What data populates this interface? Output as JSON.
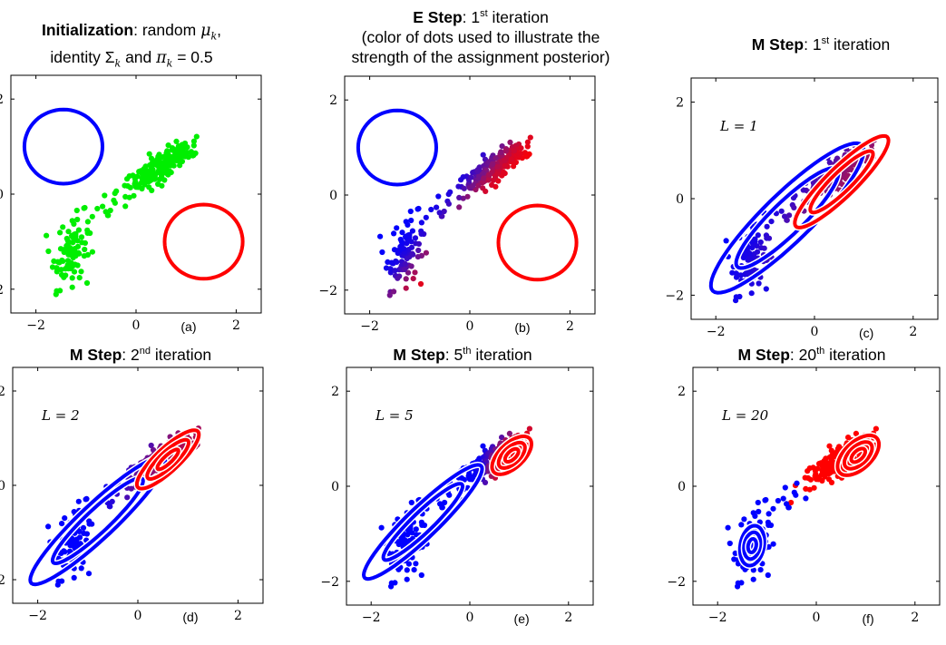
{
  "titles": {
    "a": {
      "bold": "Initialization",
      "rest": ": random ",
      "mu": "μ",
      "sub_k": "k",
      "comma": ",",
      "line2a": "identity ",
      "sigma": "Σ",
      "line2b": " and ",
      "pi": "π",
      "line2c": " = 0.5"
    },
    "b": {
      "bold": "E Step",
      "rest": ": 1",
      "sup": "st",
      "after": " iteration",
      "line2": "(color of dots used to illustrate the",
      "line3": "strength of the assignment posterior)"
    },
    "c": {
      "bold": "M Step",
      "rest": ": 1",
      "sup": "st",
      "after": " iteration"
    },
    "d": {
      "bold": "M Step",
      "rest": ": 2",
      "sup": "nd",
      "after": " iteration"
    },
    "e": {
      "bold": "M Step",
      "rest": ": 5",
      "sup": "th",
      "after": " iteration"
    },
    "f": {
      "bold": "M Step",
      "rest": ": 20",
      "sup": "th",
      "after": " iteration"
    }
  },
  "panels": [
    {
      "id": "a",
      "label": "(a)",
      "L": "",
      "mode": "init",
      "components": [
        {
          "color": "#0000ff",
          "mean": [
            -1.45,
            1.0
          ],
          "cov": [
            [
              1,
              0
            ],
            [
              0,
              1
            ]
          ],
          "scale": 0.78,
          "rings": 1
        },
        {
          "color": "#ff0000",
          "mean": [
            1.35,
            -1.0
          ],
          "cov": [
            [
              1,
              0
            ],
            [
              0,
              1
            ]
          ],
          "scale": 0.78,
          "rings": 1
        }
      ]
    },
    {
      "id": "b",
      "label": "(b)",
      "L": "",
      "mode": "estep",
      "components": [
        {
          "color": "#0000ff",
          "mean": [
            -1.45,
            1.0
          ],
          "cov": [
            [
              1,
              0
            ],
            [
              0,
              1
            ]
          ],
          "scale": 0.78,
          "rings": 1
        },
        {
          "color": "#ff0000",
          "mean": [
            1.35,
            -1.0
          ],
          "cov": [
            [
              1,
              0
            ],
            [
              0,
              1
            ]
          ],
          "scale": 0.78,
          "rings": 1
        }
      ]
    },
    {
      "id": "c",
      "label": "(c)",
      "L": "L = 1",
      "mode": "mstep1",
      "components": [
        {
          "color": "#0000ff",
          "mean": [
            -0.55,
            -0.4
          ],
          "cov": [
            [
              1,
              0.9
            ],
            [
              0.9,
              1
            ]
          ],
          "scale": 1.55,
          "rings": 2
        },
        {
          "color": "#ff0000",
          "mean": [
            0.55,
            0.35
          ],
          "cov": [
            [
              1,
              0.9
            ],
            [
              0.9,
              1
            ]
          ],
          "scale": 0.95,
          "rings": 2
        }
      ]
    },
    {
      "id": "d",
      "label": "(d)",
      "L": "L = 2",
      "mode": "mstep2",
      "components": [
        {
          "color": "#0000ff",
          "mean": [
            -0.8,
            -0.75
          ],
          "cov": [
            [
              1,
              0.93
            ],
            [
              0.93,
              1
            ]
          ],
          "scale": 1.35,
          "rings": 2
        },
        {
          "color": "#ff0000",
          "mean": [
            0.6,
            0.55
          ],
          "cov": [
            [
              1,
              0.85
            ],
            [
              0.85,
              1
            ]
          ],
          "scale": 0.62,
          "rings": 3
        }
      ]
    },
    {
      "id": "e",
      "label": "(e)",
      "L": "L = 5",
      "mode": "mstep5",
      "components": [
        {
          "color": "#0000ff",
          "mean": [
            -0.95,
            -0.75
          ],
          "cov": [
            [
              1,
              0.93
            ],
            [
              0.93,
              1
            ]
          ],
          "scale": 1.2,
          "rings": 2
        },
        {
          "color": "#ff0000",
          "mean": [
            0.85,
            0.65
          ],
          "cov": [
            [
              1,
              0.6
            ],
            [
              0.6,
              1
            ]
          ],
          "scale": 0.4,
          "rings": 3
        }
      ]
    },
    {
      "id": "f",
      "label": "(f)",
      "L": "L = 20",
      "mode": "mstep20",
      "components": [
        {
          "color": "#0000ff",
          "mean": [
            -1.3,
            -1.25
          ],
          "cov": [
            [
              0.35,
              0.12
            ],
            [
              0.12,
              1
            ]
          ],
          "scale": 0.42,
          "rings": 3
        },
        {
          "color": "#ff0000",
          "mean": [
            0.85,
            0.65
          ],
          "cov": [
            [
              1,
              0.55
            ],
            [
              0.55,
              1
            ]
          ],
          "scale": 0.42,
          "rings": 3
        }
      ]
    }
  ],
  "axes": {
    "xticks": [
      "−2",
      "0",
      "2"
    ],
    "yticks": [
      "2",
      "0",
      "−2"
    ],
    "xlim": [
      -2.5,
      2.5
    ],
    "ylim": [
      -2.5,
      2.5
    ]
  }
}
